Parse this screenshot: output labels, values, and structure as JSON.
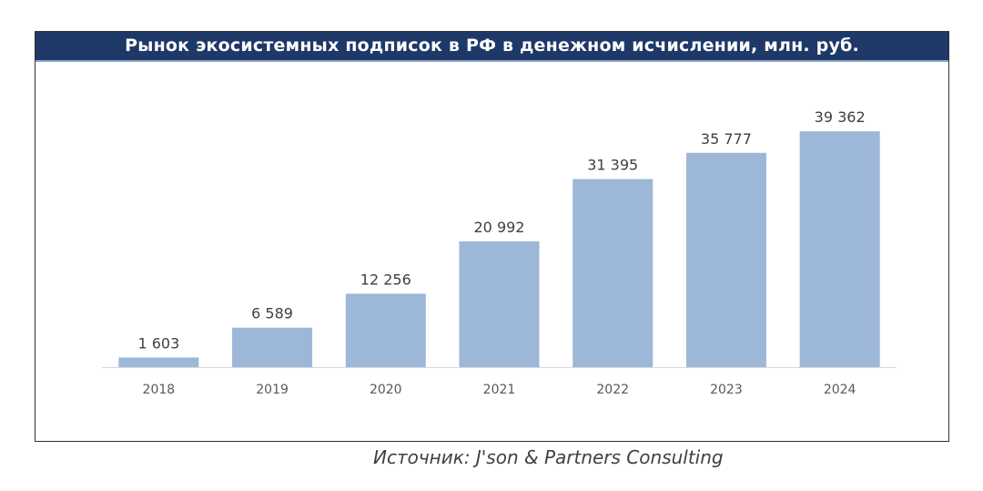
{
  "source_text": "Источник: J'son & Partners Consulting",
  "chart_data": {
    "type": "bar",
    "title": "Рынок экосистемных подписок в РФ в денежном исчислении, млн. руб.",
    "categories": [
      "2018",
      "2019",
      "2020",
      "2021",
      "2022",
      "2023",
      "2024"
    ],
    "values": [
      1603,
      6589,
      12256,
      20992,
      31395,
      35777,
      39362
    ],
    "value_labels": [
      "1 603",
      "6 589",
      "12 256",
      "20 992",
      "31 395",
      "35 777",
      "39 362"
    ],
    "ylim": [
      0,
      40000
    ],
    "grid": false,
    "legend": "none",
    "bar_color": "#9db7d8",
    "axis_color": "#d9d9d9"
  }
}
